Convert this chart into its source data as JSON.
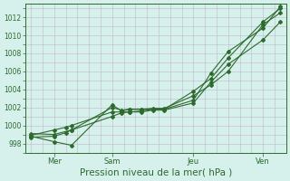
{
  "title": "Pression niveau de la mer( hPa )",
  "bg_color": "#d6f0ec",
  "grid_color": "#c0b8c8",
  "line_color": "#2d6a2d",
  "ylim": [
    997.0,
    1013.5
  ],
  "yticks": [
    998,
    1000,
    1002,
    1004,
    1006,
    1008,
    1010,
    1012
  ],
  "xtick_labels": [
    "Mer",
    "Sam",
    "Jeu",
    "Ven"
  ],
  "xtick_positions": [
    2,
    7,
    14,
    20
  ],
  "xlim": [
    -0.5,
    22
  ],
  "series": [
    {
      "x": [
        0,
        2,
        3.5,
        7,
        7.8,
        8.5,
        9.5,
        10.5,
        11.5,
        14.0,
        15.5,
        17.0,
        20,
        21.5
      ],
      "y": [
        998.8,
        998.2,
        997.8,
        1002.3,
        1001.6,
        1001.8,
        1001.8,
        1001.9,
        1001.9,
        1003.3,
        1004.5,
        1006.0,
        1011.2,
        1012.5
      ]
    },
    {
      "x": [
        0,
        2,
        3.5,
        7,
        7.8,
        8.5,
        9.5,
        10.5,
        11.5,
        14.0,
        15.5,
        17.0,
        20,
        21.5
      ],
      "y": [
        999.1,
        999.0,
        999.5,
        1002.0,
        1001.7,
        1001.8,
        1001.8,
        1001.8,
        1001.8,
        1003.8,
        1005.2,
        1007.5,
        1011.5,
        1013.0
      ]
    },
    {
      "x": [
        0,
        2,
        3,
        3.5,
        7,
        7.8,
        8.5,
        9.5,
        10.5,
        11.5,
        14.0,
        15.5,
        17.0,
        20,
        21.5
      ],
      "y": [
        998.9,
        999.5,
        999.8,
        1000.0,
        1001.5,
        1001.5,
        1001.5,
        1001.5,
        1001.7,
        1001.7,
        1002.5,
        1004.8,
        1006.8,
        1009.5,
        1011.5
      ]
    },
    {
      "x": [
        0,
        2,
        3,
        3.5,
        7,
        7.8,
        8.5,
        9.5,
        10.5,
        11.5,
        14.0,
        15.5,
        17.0,
        20,
        21.5
      ],
      "y": [
        998.7,
        998.8,
        999.2,
        999.5,
        1001.0,
        1001.4,
        1001.5,
        1001.6,
        1001.8,
        1001.8,
        1002.8,
        1005.8,
        1008.2,
        1010.8,
        1013.2
      ]
    }
  ]
}
